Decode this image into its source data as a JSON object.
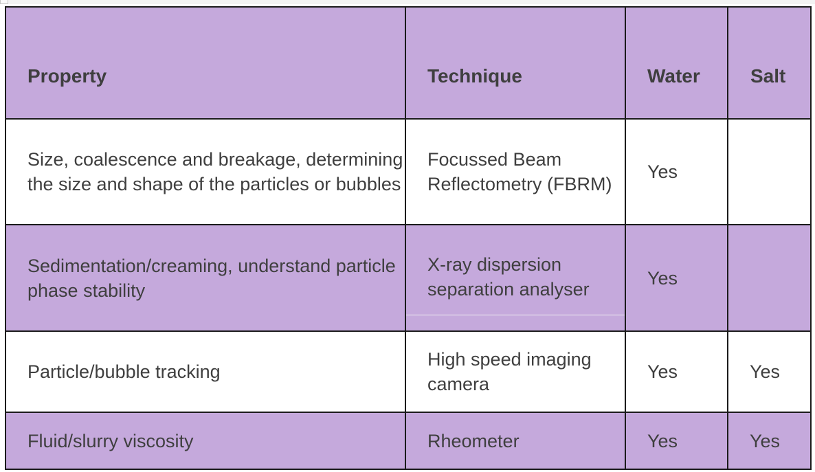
{
  "table": {
    "headers": {
      "property": "Property",
      "technique": "Technique",
      "water": "Water",
      "salt": "Salt"
    },
    "rows": [
      {
        "property": "Size, coalescence and breakage, determining the size and shape of the particles or bubbles",
        "technique": "Focussed Beam Reflectometry (FBRM)",
        "water": "Yes",
        "salt": ""
      },
      {
        "property": "Sedimentation/creaming, understand particle phase stability",
        "technique": "X-ray dispersion separation analyser",
        "water": "Yes",
        "salt": ""
      },
      {
        "property": "Particle/bubble tracking",
        "technique": "High speed imaging camera",
        "water": "Yes",
        "salt": "Yes"
      },
      {
        "property": "Fluid/slurry viscosity",
        "technique": "Rheometer",
        "water": "Yes",
        "salt": "Yes"
      }
    ]
  },
  "colors": {
    "header_fill": "#c5a9dc",
    "band_fill": "#c5a9dc",
    "row_fill": "#ffffff",
    "border": "#1b1b1b",
    "text": "#3f3f3f"
  }
}
